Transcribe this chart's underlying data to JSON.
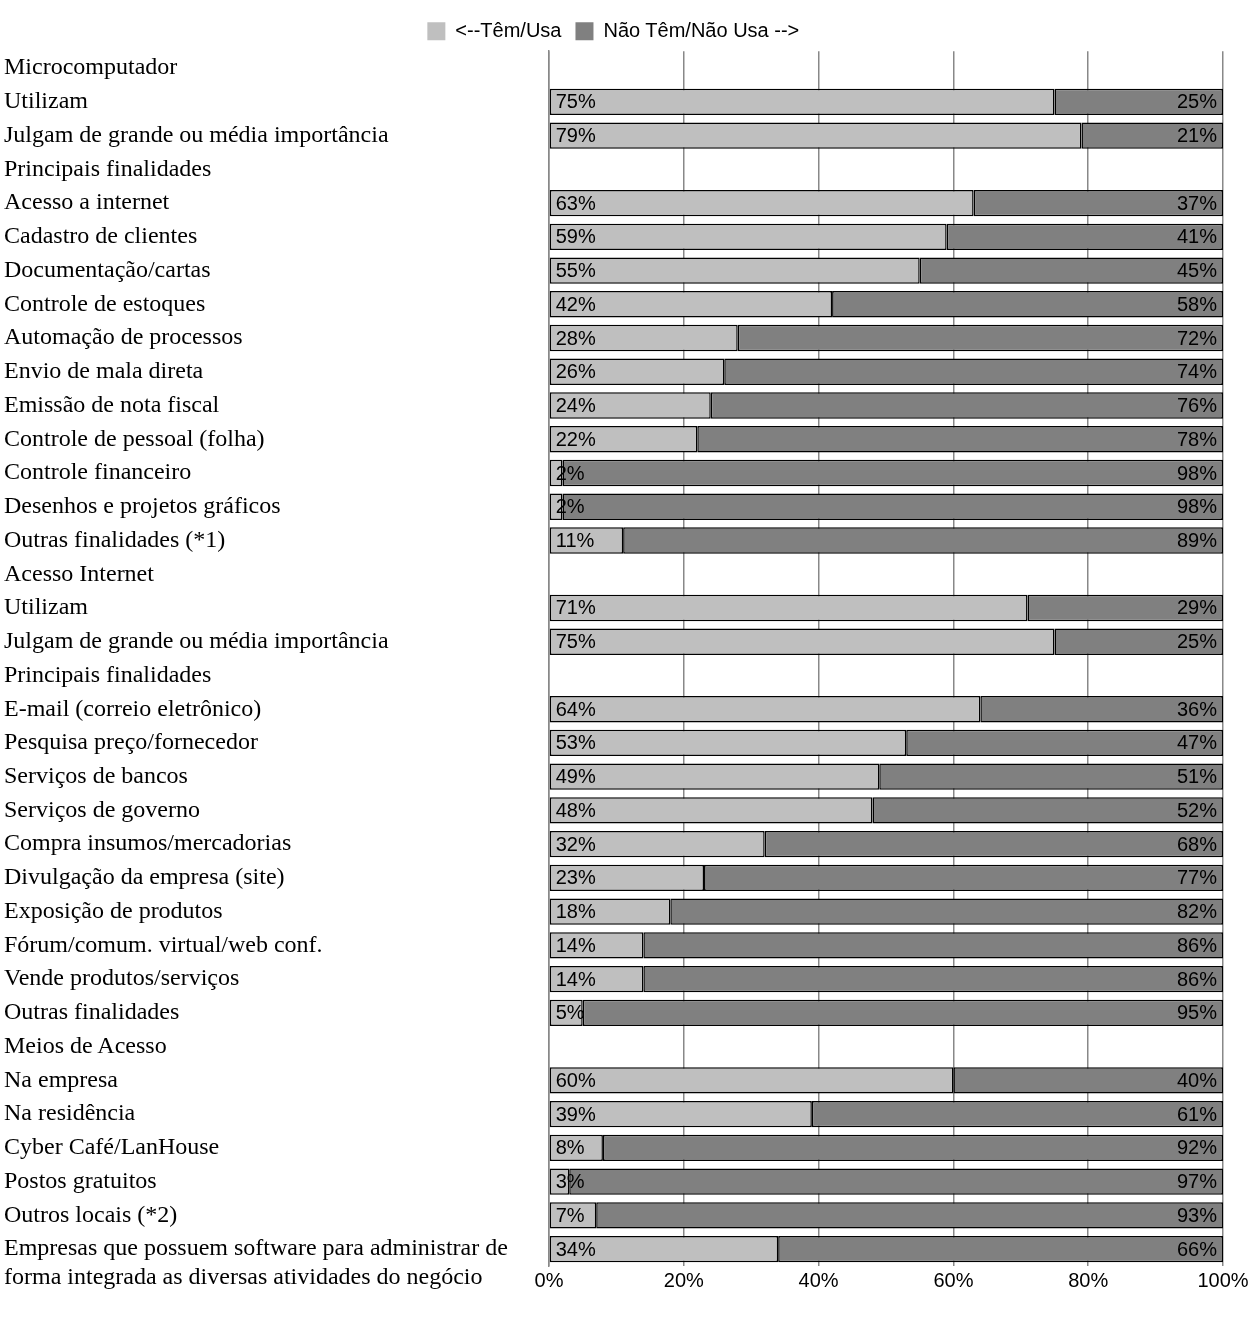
{
  "chart_data": {
    "type": "bar",
    "orientation": "horizontal",
    "stacked": true,
    "legend": "top",
    "grid": "x",
    "categories": [
      "Microcomputador",
      "Utilizam",
      "Julgam de grande ou média importância",
      "Principais finalidades",
      "Acesso a internet",
      "Cadastro de clientes",
      "Documentação/cartas",
      "Controle de estoques",
      "Automação de processos",
      "Envio de mala direta",
      "Emissão de nota fiscal",
      "Controle de pessoal (folha)",
      "Controle financeiro",
      "Desenhos e projetos gráficos",
      "Outras finalidades (*1)",
      "Acesso Internet",
      "Utilizam",
      "Julgam de grande ou média importância",
      "Principais finalidades",
      "E-mail (correio eletrônico)",
      "Pesquisa preço/fornecedor",
      "Serviços de bancos",
      "Serviços de governo",
      "Compra insumos/mercadorias",
      "Divulgação da empresa (site)",
      "Exposição de produtos",
      "Fórum/comum. virtual/web conf.",
      "Vende produtos/serviços",
      "Outras finalidades",
      "Meios de Acesso",
      "Na empresa",
      "Na residência",
      "Cyber Café/LanHouse",
      "Postos gratuitos",
      "Outros locais (*2)",
      "Empresas que possuem software para administrar de forma integrada as diversas atividades do negócio"
    ],
    "series": [
      {
        "name": "<--Têm/Usa",
        "color": "#bfbfbf",
        "values": [
          null,
          75,
          79,
          null,
          63,
          59,
          55,
          42,
          28,
          26,
          24,
          22,
          2,
          2,
          11,
          null,
          71,
          75,
          null,
          64,
          53,
          49,
          48,
          32,
          23,
          18,
          14,
          14,
          5,
          null,
          60,
          39,
          8,
          3,
          7,
          34
        ],
        "value_labels": [
          null,
          "75%",
          "79%",
          null,
          "63%",
          "59%",
          "55%",
          "42%",
          "28%",
          "26%",
          "24%",
          "22%",
          "2%",
          "2%",
          "11%",
          null,
          "71%",
          "75%",
          null,
          "64%",
          "53%",
          "49%",
          "48%",
          "32%",
          "23%",
          "18%",
          "14%",
          "14%",
          "5%",
          null,
          "60%",
          "39%",
          "8%",
          "3%",
          "7%",
          "34%"
        ]
      },
      {
        "name": "Não Têm/Não Usa -->",
        "color": "#808080",
        "values": [
          null,
          25,
          21,
          null,
          37,
          41,
          45,
          58,
          72,
          74,
          76,
          78,
          98,
          98,
          89,
          null,
          29,
          25,
          null,
          36,
          47,
          51,
          52,
          68,
          77,
          82,
          86,
          86,
          95,
          null,
          40,
          61,
          92,
          97,
          93,
          66
        ],
        "value_labels": [
          null,
          "25%",
          "21%",
          null,
          "37%",
          "41%",
          "45%",
          "58%",
          "72%",
          "74%",
          "76%",
          "78%",
          "98%",
          "98%",
          "89%",
          null,
          "29%",
          "25%",
          null,
          "36%",
          "47%",
          "51%",
          "52%",
          "68%",
          "77%",
          "82%",
          "86%",
          "86%",
          "95%",
          null,
          "40%",
          "61%",
          "92%",
          "97%",
          "93%",
          "66%"
        ]
      }
    ],
    "xlim": [
      0,
      100
    ],
    "xticks": [
      {
        "value": 0,
        "label": "0%"
      },
      {
        "value": 20,
        "label": "20%"
      },
      {
        "value": 40,
        "label": "40%"
      },
      {
        "value": 60,
        "label": "60%"
      },
      {
        "value": 80,
        "label": "80%"
      },
      {
        "value": 100,
        "label": "100%"
      }
    ]
  }
}
